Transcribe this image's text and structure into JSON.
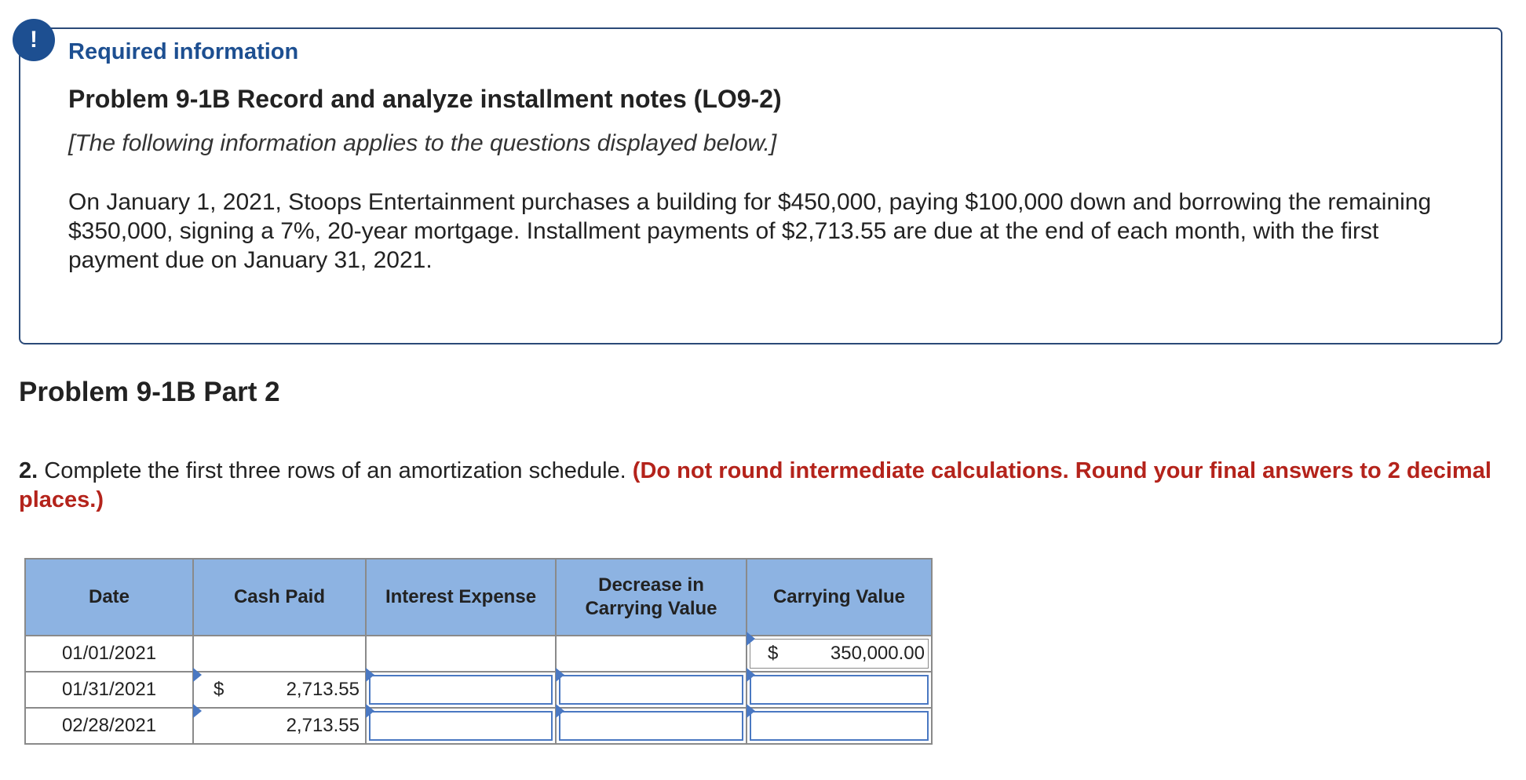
{
  "alert": {
    "symbol": "!"
  },
  "info": {
    "heading": "Required information",
    "title": "Problem 9-1B Record and analyze installment notes (LO9-2)",
    "note": "[The following information applies to the questions displayed below.]",
    "body": "On January 1, 2021, Stoops Entertainment purchases a building for $450,000, paying $100,000 down and borrowing the remaining $350,000, signing a 7%, 20-year mortgage. Installment payments of $2,713.55 are due at the end of each month, with the first payment due on January 31, 2021."
  },
  "part": {
    "title": "Problem 9-1B Part 2"
  },
  "question": {
    "number": "2.",
    "text": "Complete the first three rows of an amortization schedule.",
    "instruction": "(Do not round intermediate calculations. Round your final answers to 2 decimal places.)"
  },
  "table": {
    "headers": {
      "date": "Date",
      "cash_paid": "Cash Paid",
      "interest_expense": "Interest Expense",
      "decrease_line1": "Decrease in",
      "decrease_line2": "Carrying Value",
      "carrying_value": "Carrying Value"
    },
    "rows": [
      {
        "date": "01/01/2021",
        "cash_dollar": "",
        "cash_paid": "",
        "interest_expense": "",
        "decrease": "",
        "carry_dollar": "$",
        "carrying_value": "350,000.00"
      },
      {
        "date": "01/31/2021",
        "cash_dollar": "$",
        "cash_paid": "2,713.55",
        "interest_expense": "",
        "decrease": "",
        "carry_dollar": "",
        "carrying_value": ""
      },
      {
        "date": "02/28/2021",
        "cash_dollar": "",
        "cash_paid": "2,713.55",
        "interest_expense": "",
        "decrease": "",
        "carry_dollar": "",
        "carrying_value": ""
      }
    ]
  },
  "colors": {
    "accent": "#1d4f91",
    "instruction": "#b4231b",
    "header_bg": "#8db3e2",
    "input_border": "#4a78c2"
  }
}
